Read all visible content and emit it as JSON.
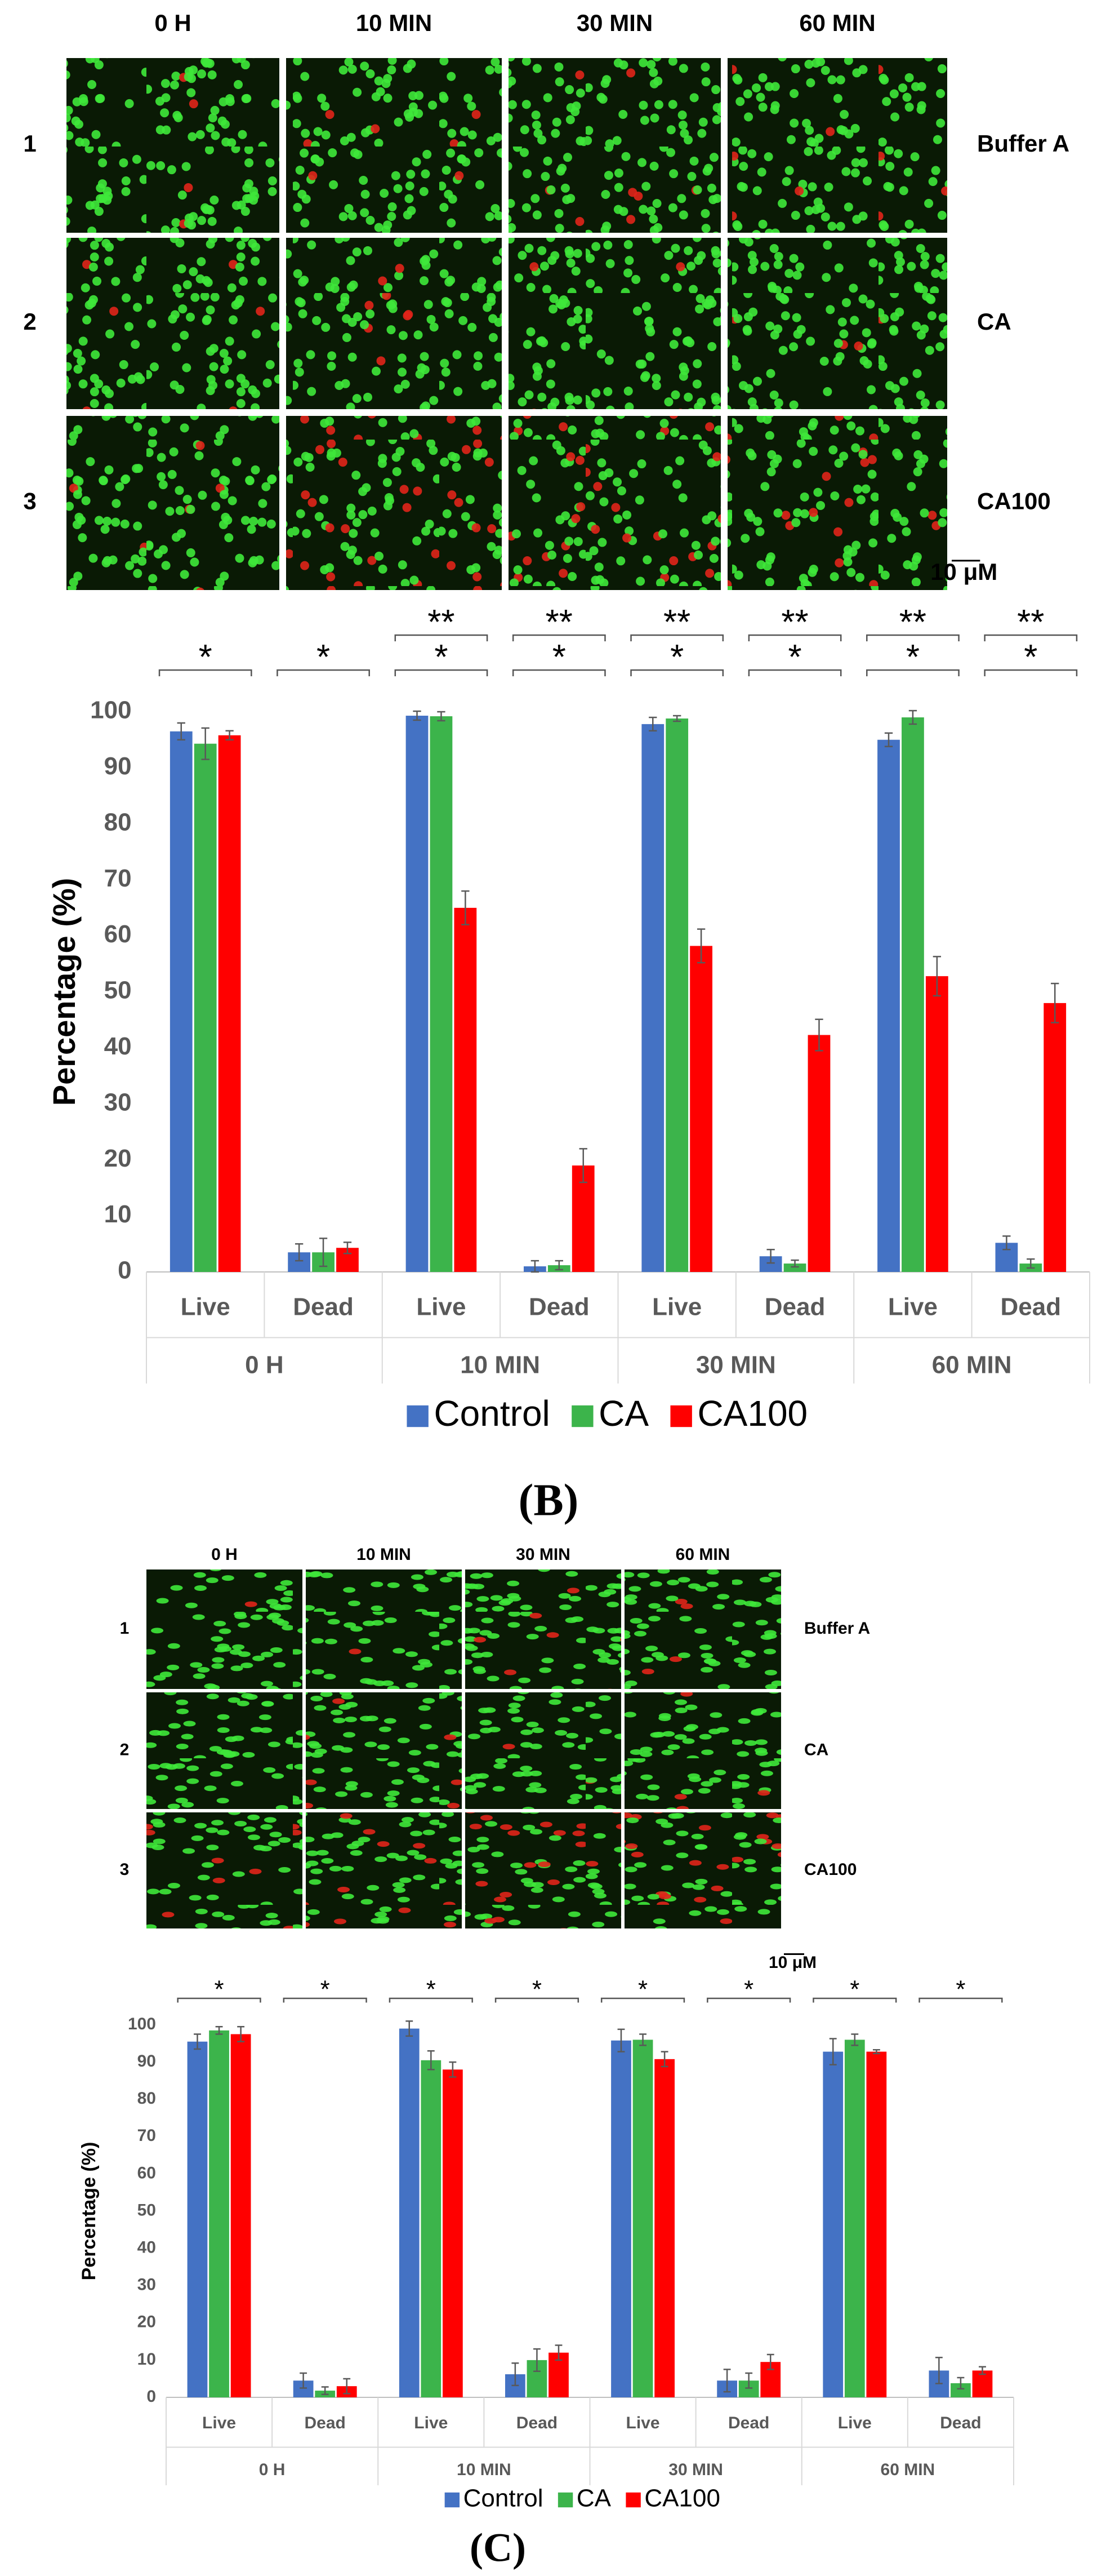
{
  "chart_data": [
    {
      "type": "bar",
      "panel_label": "(B)",
      "image_columns": [
        "0 H",
        "10 MIN",
        "30 MIN",
        "60 MIN"
      ],
      "image_rows": [
        "1",
        "2",
        "3"
      ],
      "image_row_labels": [
        "Buffer A",
        "CA",
        "CA100"
      ],
      "scale_bar": "10 μM",
      "y_label": "Percentage (%)",
      "groups": [
        "0 H",
        "10 MIN",
        "30 MIN",
        "60 MIN"
      ],
      "categories": [
        "Live",
        "Dead",
        "Live",
        "Dead",
        "Live",
        "Dead",
        "Live",
        "Dead"
      ],
      "series": [
        {
          "name": "Control",
          "color": "#4472c4",
          "values": [
            96.5,
            3.5,
            99.3,
            1,
            97.8,
            2.8,
            95,
            5.2
          ],
          "errors": [
            1.5,
            1.5,
            0.8,
            1,
            1.2,
            1.2,
            1.2,
            1.2
          ]
        },
        {
          "name": "CA",
          "color": "#3cb44b",
          "values": [
            94.3,
            3.5,
            99.2,
            1.2,
            98.8,
            1.5,
            99,
            1.5
          ],
          "errors": [
            2.8,
            2.5,
            0.8,
            0.8,
            0.5,
            0.6,
            1.2,
            0.8
          ]
        },
        {
          "name": "CA100",
          "color": "#ff0000",
          "values": [
            95.8,
            4.3,
            65,
            19,
            58.2,
            42.3,
            52.8,
            48
          ],
          "errors": [
            0.8,
            1,
            3,
            3,
            3,
            2.8,
            3.5,
            3.5
          ]
        }
      ],
      "significance": [
        [
          "*"
        ],
        [
          "*"
        ],
        [
          "*",
          "**"
        ],
        [
          "*",
          "**"
        ],
        [
          "*",
          "**"
        ],
        [
          "*",
          "**"
        ],
        [
          "*",
          "**"
        ],
        [
          "*",
          "**"
        ]
      ],
      "ylim": [
        0,
        100
      ],
      "yticks": [
        0,
        10,
        20,
        30,
        40,
        50,
        60,
        70,
        80,
        90,
        100
      ],
      "legend": "bottom"
    },
    {
      "type": "bar",
      "panel_label": "(C)",
      "image_columns": [
        "0 H",
        "10 MIN",
        "30 MIN",
        "60 MIN"
      ],
      "image_rows": [
        "1",
        "2",
        "3"
      ],
      "image_row_labels": [
        "Buffer A",
        "CA",
        "CA100"
      ],
      "scale_bar": "10 μM",
      "y_label": "Percentage (%)",
      "groups": [
        "0 H",
        "10 MIN",
        "30 MIN",
        "60 MIN"
      ],
      "categories": [
        "Live",
        "Dead",
        "Live",
        "Dead",
        "Live",
        "Dead",
        "Live",
        "Dead"
      ],
      "series": [
        {
          "name": "Control",
          "color": "#4472c4",
          "values": [
            95.5,
            4.5,
            99,
            6.2,
            95.8,
            4.5,
            92.8,
            7.2
          ],
          "errors": [
            2,
            2,
            2,
            3,
            3,
            3,
            3.5,
            3.5
          ]
        },
        {
          "name": "CA",
          "color": "#3cb44b",
          "values": [
            98.5,
            1.8,
            90.5,
            10,
            96,
            4.5,
            96,
            3.8
          ],
          "errors": [
            1,
            1,
            2.5,
            3,
            1.5,
            2,
            1.5,
            1.5
          ]
        },
        {
          "name": "CA100",
          "color": "#ff0000",
          "values": [
            97.5,
            3,
            88,
            12,
            90.8,
            9.5,
            92.8,
            7.2
          ],
          "errors": [
            2,
            2,
            2,
            2,
            2,
            2,
            0.5,
            1
          ]
        }
      ],
      "significance": [
        [
          "*"
        ],
        [
          "*"
        ],
        [
          "*"
        ],
        [
          "*"
        ],
        [
          "*"
        ],
        [
          "*"
        ],
        [
          "*"
        ],
        [
          "*"
        ]
      ],
      "ylim": [
        0,
        100
      ],
      "yticks": [
        0,
        10,
        20,
        30,
        40,
        50,
        60,
        70,
        80,
        90,
        100
      ],
      "legend": "bottom"
    }
  ]
}
